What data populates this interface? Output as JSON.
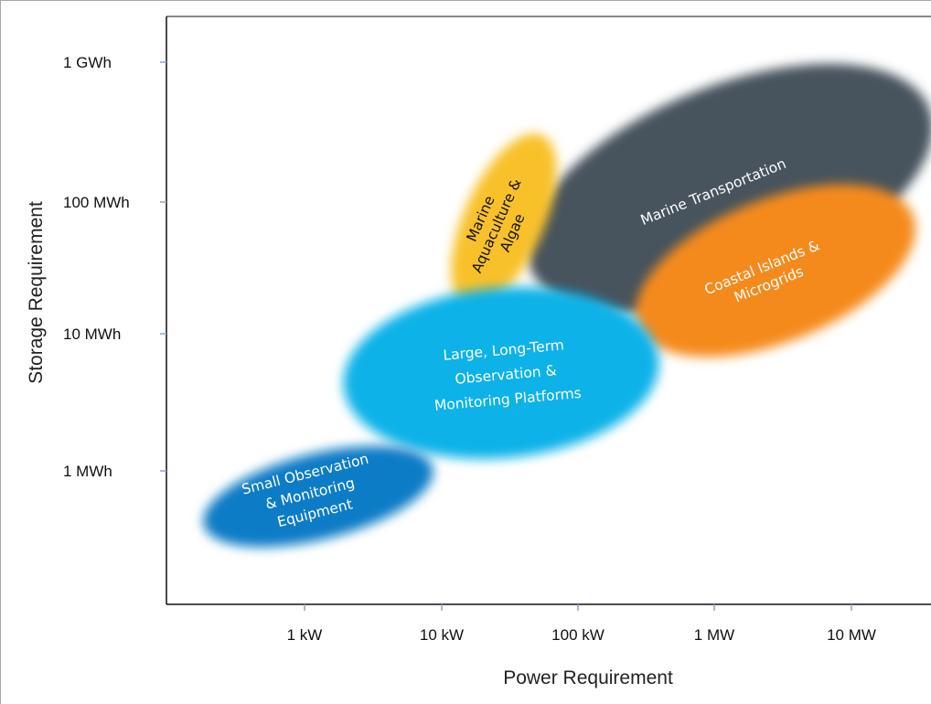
{
  "chart_data": {
    "type": "scatter",
    "title": "",
    "xlabel": "Power Requirement",
    "ylabel": "Storage Requirement",
    "x_scale": "log",
    "y_scale": "log",
    "x_ticks": [
      "1 kW",
      "10 kW",
      "100 kW",
      "1 MW",
      "10 MW"
    ],
    "y_ticks": [
      "1 GWh",
      "100 MWh",
      "10 MWh",
      "1 MWh"
    ],
    "grid": false,
    "series": [
      {
        "name": "Marine Transportation",
        "lines": [
          "Marine Transportation"
        ],
        "color": "#47535d",
        "text_color": "#ffffff"
      },
      {
        "name": "Marine Aquaculture & Algae",
        "lines": [
          "Marine",
          "Aquaculture &",
          "Algae"
        ],
        "color": "#f8c12a",
        "text_color": "#111111"
      },
      {
        "name": "Coastal Islands & Microgrids",
        "lines": [
          "Coastal Islands &",
          "Microgrids"
        ],
        "color": "#f58a1f",
        "text_color": "#ffffff"
      },
      {
        "name": "Large, Long-Term Observation & Monitoring Platforms",
        "lines": [
          "Large, Long-Term",
          "Observation &",
          "Monitoring Platforms"
        ],
        "color": "#0db2e8",
        "text_color": "#ffffff"
      },
      {
        "name": "Small Observation & Monitoring Equipment",
        "lines": [
          "Small Observation",
          "& Monitoring",
          "Equipment"
        ],
        "color": "#0a7cc6",
        "text_color": "#ffffff"
      }
    ]
  }
}
